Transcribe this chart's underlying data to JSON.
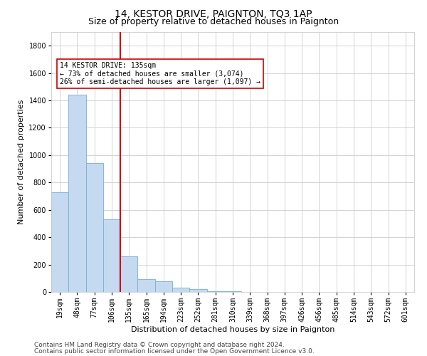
{
  "title": "14, KESTOR DRIVE, PAIGNTON, TQ3 1AP",
  "subtitle": "Size of property relative to detached houses in Paignton",
  "xlabel": "Distribution of detached houses by size in Paignton",
  "ylabel": "Number of detached properties",
  "footnote1": "Contains HM Land Registry data © Crown copyright and database right 2024.",
  "footnote2": "Contains public sector information licensed under the Open Government Licence v3.0.",
  "bar_color": "#c5d9f0",
  "bar_edge_color": "#7bafd4",
  "grid_color": "#cccccc",
  "vline_color": "#cc0000",
  "vline_x_index": 4,
  "annotation_text": "14 KESTOR DRIVE: 135sqm\n← 73% of detached houses are smaller (3,074)\n26% of semi-detached houses are larger (1,097) →",
  "annotation_box_color": "#cc0000",
  "categories": [
    "19sqm",
    "48sqm",
    "77sqm",
    "106sqm",
    "135sqm",
    "165sqm",
    "194sqm",
    "223sqm",
    "252sqm",
    "281sqm",
    "310sqm",
    "339sqm",
    "368sqm",
    "397sqm",
    "426sqm",
    "456sqm",
    "485sqm",
    "514sqm",
    "543sqm",
    "572sqm",
    "601sqm"
  ],
  "values": [
    730,
    1440,
    940,
    530,
    260,
    95,
    80,
    30,
    20,
    5,
    3,
    2,
    1,
    1,
    0,
    0,
    0,
    0,
    0,
    0,
    0
  ],
  "ylim": [
    0,
    1900
  ],
  "yticks": [
    0,
    200,
    400,
    600,
    800,
    1000,
    1200,
    1400,
    1600,
    1800
  ],
  "background_color": "#ffffff",
  "title_fontsize": 10,
  "subtitle_fontsize": 9,
  "axis_label_fontsize": 8,
  "tick_fontsize": 7,
  "annotation_fontsize": 7,
  "footnote_fontsize": 6.5
}
